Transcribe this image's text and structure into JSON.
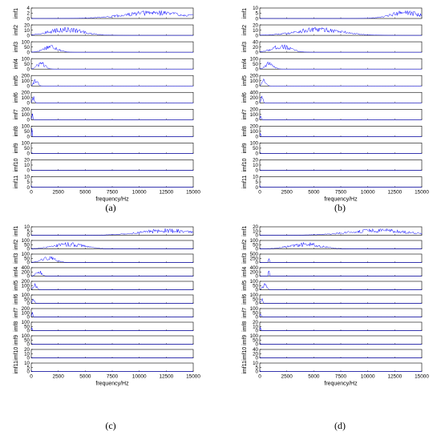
{
  "panels": [
    {
      "caption": "(a)"
    },
    {
      "caption": "(b)"
    },
    {
      "caption": "(c)"
    },
    {
      "caption": "(d)"
    }
  ],
  "chart_data": [
    {
      "type": "line",
      "xlabel": "frequency/Hz",
      "xlim": [
        0,
        15000
      ],
      "xticks": [
        0,
        2500,
        5000,
        7500,
        10000,
        12500,
        15000
      ],
      "line_color": "#0000ff",
      "subplots": [
        {
          "label": "imf1",
          "yticks": [
            0,
            2,
            4
          ],
          "ylim": [
            0,
            4
          ],
          "peak_freq": 11500,
          "spread": 4000,
          "kind": "hf"
        },
        {
          "label": "imf2",
          "yticks": [
            0,
            10,
            20
          ],
          "ylim": [
            0,
            20
          ],
          "peak_freq": 3200,
          "spread": 2200,
          "kind": "mf"
        },
        {
          "label": "imf3",
          "yticks": [
            0,
            50,
            100
          ],
          "ylim": [
            0,
            100
          ],
          "peak_freq": 1800,
          "spread": 900,
          "kind": "mf"
        },
        {
          "label": "imf4",
          "yticks": [
            0,
            50,
            100
          ],
          "ylim": [
            0,
            100
          ],
          "peak_freq": 900,
          "spread": 500,
          "kind": "lf"
        },
        {
          "label": "imf5",
          "yticks": [
            0,
            100,
            200
          ],
          "ylim": [
            0,
            200
          ],
          "peak_freq": 400,
          "spread": 250,
          "kind": "lf"
        },
        {
          "label": "imf6",
          "yticks": [
            0,
            100,
            200
          ],
          "ylim": [
            0,
            200
          ],
          "peak_freq": 200,
          "spread": 120,
          "kind": "lf"
        },
        {
          "label": "imf7",
          "yticks": [
            0,
            100,
            200
          ],
          "ylim": [
            0,
            200
          ],
          "peak_freq": 100,
          "spread": 60,
          "kind": "lf"
        },
        {
          "label": "imf8",
          "yticks": [
            0,
            50,
            100
          ],
          "ylim": [
            0,
            100
          ],
          "peak_freq": 60,
          "spread": 40,
          "kind": "lf"
        },
        {
          "label": "imf9",
          "yticks": [
            0,
            50,
            100
          ],
          "ylim": [
            0,
            100
          ],
          "peak_freq": 30,
          "spread": 20,
          "kind": "lf"
        },
        {
          "label": "imf10",
          "yticks": [
            0,
            10,
            20
          ],
          "ylim": [
            0,
            20
          ],
          "peak_freq": 20,
          "spread": 15,
          "kind": "lf"
        },
        {
          "label": "imf11",
          "yticks": [
            0,
            5,
            10
          ],
          "ylim": [
            0,
            10
          ],
          "peak_freq": 10,
          "spread": 10,
          "kind": "lf"
        }
      ]
    },
    {
      "type": "line",
      "xlabel": "frequency/Hz",
      "xlim": [
        0,
        15000
      ],
      "xticks": [
        0,
        2500,
        5000,
        7500,
        10000,
        12500,
        15000
      ],
      "line_color": "#0000ff",
      "subplots": [
        {
          "label": "imf1",
          "yticks": [
            0,
            5,
            10
          ],
          "ylim": [
            0,
            10
          ],
          "peak_freq": 13500,
          "spread": 2000,
          "kind": "hf"
        },
        {
          "label": "imf2",
          "yticks": [
            0,
            10,
            20
          ],
          "ylim": [
            0,
            20
          ],
          "peak_freq": 5500,
          "spread": 3000,
          "kind": "mf"
        },
        {
          "label": "imf3",
          "yticks": [
            0,
            20,
            40
          ],
          "ylim": [
            0,
            40
          ],
          "peak_freq": 2000,
          "spread": 1200,
          "kind": "mf"
        },
        {
          "label": "imf4",
          "yticks": [
            0,
            50,
            100
          ],
          "ylim": [
            0,
            100
          ],
          "peak_freq": 900,
          "spread": 500,
          "kind": "lf"
        },
        {
          "label": "imf5",
          "yticks": [
            0,
            100,
            200
          ],
          "ylim": [
            0,
            200
          ],
          "peak_freq": 400,
          "spread": 250,
          "kind": "lf"
        },
        {
          "label": "imf6",
          "yticks": [
            0,
            200,
            400
          ],
          "ylim": [
            0,
            400
          ],
          "peak_freq": 200,
          "spread": 120,
          "kind": "lf"
        },
        {
          "label": "imf7",
          "yticks": [
            0,
            100,
            200
          ],
          "ylim": [
            0,
            200
          ],
          "peak_freq": 100,
          "spread": 60,
          "kind": "lf"
        },
        {
          "label": "imf8",
          "yticks": [
            0,
            100,
            200
          ],
          "ylim": [
            0,
            200
          ],
          "peak_freq": 60,
          "spread": 40,
          "kind": "lf"
        },
        {
          "label": "imf9",
          "yticks": [
            0,
            50,
            100
          ],
          "ylim": [
            0,
            100
          ],
          "peak_freq": 30,
          "spread": 20,
          "kind": "lf"
        },
        {
          "label": "imf10",
          "yticks": [
            0,
            10,
            20
          ],
          "ylim": [
            0,
            20
          ],
          "peak_freq": 20,
          "spread": 15,
          "kind": "lf"
        },
        {
          "label": "imf11",
          "yticks": [
            0,
            5,
            10
          ],
          "ylim": [
            0,
            10
          ],
          "peak_freq": 10,
          "spread": 10,
          "kind": "lf"
        }
      ]
    },
    {
      "type": "line",
      "xlabel": "frequency/Hz",
      "xlim": [
        0,
        15000
      ],
      "xticks": [
        0,
        2500,
        5000,
        7500,
        10000,
        12500,
        15000
      ],
      "line_color": "#0000ff",
      "subplots": [
        {
          "label": "imf1",
          "yticks": [
            0,
            5,
            10
          ],
          "ylim": [
            0,
            10
          ],
          "peak_freq": 12500,
          "spread": 3500,
          "kind": "hf"
        },
        {
          "label": "imf2",
          "yticks": [
            0,
            50,
            100
          ],
          "ylim": [
            0,
            100
          ],
          "peak_freq": 3500,
          "spread": 2000,
          "kind": "mf"
        },
        {
          "label": "imf3",
          "yticks": [
            0,
            50,
            100
          ],
          "ylim": [
            0,
            100
          ],
          "peak_freq": 1600,
          "spread": 900,
          "kind": "mf"
        },
        {
          "label": "imf4",
          "yticks": [
            0,
            200,
            400
          ],
          "ylim": [
            0,
            400
          ],
          "peak_freq": 700,
          "spread": 350,
          "kind": "lf"
        },
        {
          "label": "imf5",
          "yticks": [
            0,
            100,
            200
          ],
          "ylim": [
            0,
            200
          ],
          "peak_freq": 350,
          "spread": 220,
          "kind": "lf"
        },
        {
          "label": "imf6",
          "yticks": [
            0,
            50,
            100
          ],
          "ylim": [
            0,
            100
          ],
          "peak_freq": 200,
          "spread": 120,
          "kind": "lf"
        },
        {
          "label": "imf7",
          "yticks": [
            0,
            100,
            200
          ],
          "ylim": [
            0,
            200
          ],
          "peak_freq": 100,
          "spread": 60,
          "kind": "lf"
        },
        {
          "label": "imf8",
          "yticks": [
            0,
            50,
            100
          ],
          "ylim": [
            0,
            100
          ],
          "peak_freq": 60,
          "spread": 40,
          "kind": "lf"
        },
        {
          "label": "imf9",
          "yticks": [
            0,
            50,
            100
          ],
          "ylim": [
            0,
            100
          ],
          "peak_freq": 30,
          "spread": 20,
          "kind": "lf"
        },
        {
          "label": "imf10",
          "yticks": [
            0,
            10,
            20
          ],
          "ylim": [
            0,
            20
          ],
          "peak_freq": 20,
          "spread": 15,
          "kind": "lf"
        },
        {
          "label": "imf11",
          "yticks": [
            0,
            5,
            10
          ],
          "ylim": [
            0,
            10
          ],
          "peak_freq": 10,
          "spread": 10,
          "kind": "lf"
        }
      ]
    },
    {
      "type": "line",
      "xlabel": "frequency/Hz",
      "xlim": [
        0,
        15000
      ],
      "xticks": [
        0,
        2500,
        5000,
        7500,
        10000,
        12500,
        15000
      ],
      "line_color": "#0000ff",
      "subplots": [
        {
          "label": "imf1",
          "yticks": [
            0,
            10,
            20
          ],
          "ylim": [
            0,
            20
          ],
          "peak_freq": 11000,
          "spread": 4000,
          "kind": "hf"
        },
        {
          "label": "imf2",
          "yticks": [
            0,
            50,
            100
          ],
          "ylim": [
            0,
            100
          ],
          "peak_freq": 4200,
          "spread": 2000,
          "kind": "mf"
        },
        {
          "label": "imf3",
          "yticks": [
            0,
            250,
            500
          ],
          "ylim": [
            0,
            500
          ],
          "peak_freq": 850,
          "spread": 60,
          "kind": "spike"
        },
        {
          "label": "imf4",
          "yticks": [
            0,
            200,
            400
          ],
          "ylim": [
            0,
            400
          ],
          "peak_freq": 850,
          "spread": 60,
          "kind": "spike"
        },
        {
          "label": "imf5",
          "yticks": [
            0,
            50,
            100
          ],
          "ylim": [
            0,
            100
          ],
          "peak_freq": 450,
          "spread": 250,
          "kind": "lf"
        },
        {
          "label": "imf6",
          "yticks": [
            0,
            50,
            100
          ],
          "ylim": [
            0,
            100
          ],
          "peak_freq": 200,
          "spread": 120,
          "kind": "lf"
        },
        {
          "label": "imf7",
          "yticks": [
            0,
            50,
            100
          ],
          "ylim": [
            0,
            100
          ],
          "peak_freq": 100,
          "spread": 60,
          "kind": "lf"
        },
        {
          "label": "imf8",
          "yticks": [
            0,
            10,
            20
          ],
          "ylim": [
            0,
            20
          ],
          "peak_freq": 60,
          "spread": 40,
          "kind": "lf"
        },
        {
          "label": "imf9",
          "yticks": [
            0,
            50,
            100
          ],
          "ylim": [
            0,
            100
          ],
          "peak_freq": 30,
          "spread": 20,
          "kind": "lf"
        },
        {
          "label": "imf10",
          "yticks": [
            0,
            20,
            40
          ],
          "ylim": [
            0,
            40
          ],
          "peak_freq": 20,
          "spread": 15,
          "kind": "lf"
        },
        {
          "label": "imf11",
          "yticks": [
            0,
            5,
            10
          ],
          "ylim": [
            0,
            10
          ],
          "peak_freq": 10,
          "spread": 10,
          "kind": "lf"
        }
      ]
    }
  ]
}
